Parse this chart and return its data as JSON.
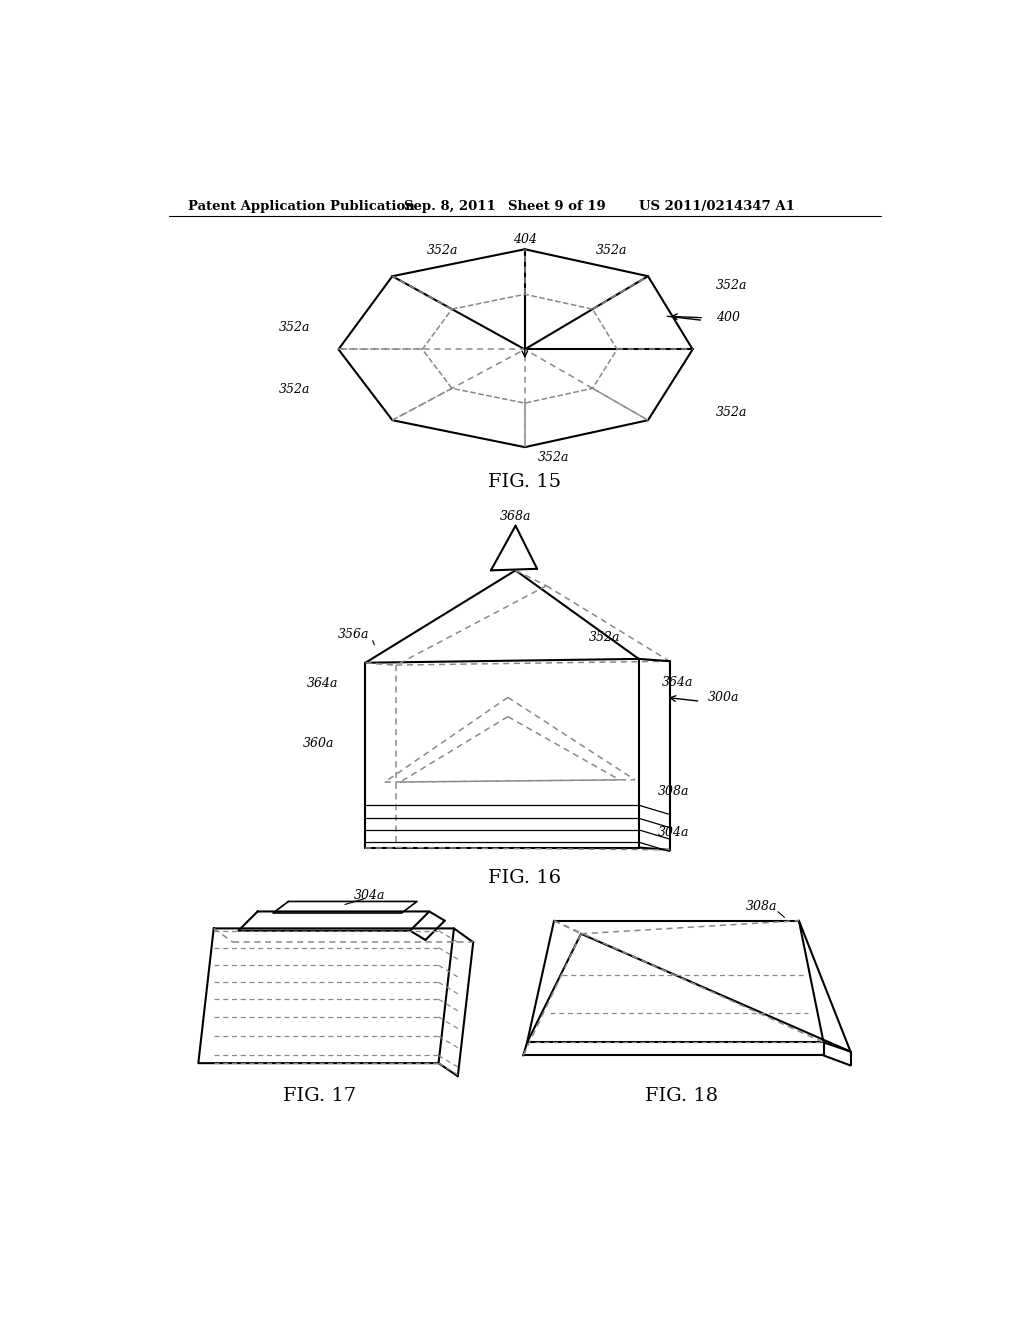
{
  "background_color": "#ffffff",
  "header_text": "Patent Application Publication",
  "header_date": "Sep. 8, 2011",
  "header_sheet": "Sheet 9 of 19",
  "header_patent": "US 2011/0214347 A1",
  "fig15_caption": "FIG. 15",
  "fig16_caption": "FIG. 16",
  "fig17_caption": "FIG. 17",
  "fig18_caption": "FIG. 18",
  "line_color": "#000000",
  "dashed_color": "#888888"
}
